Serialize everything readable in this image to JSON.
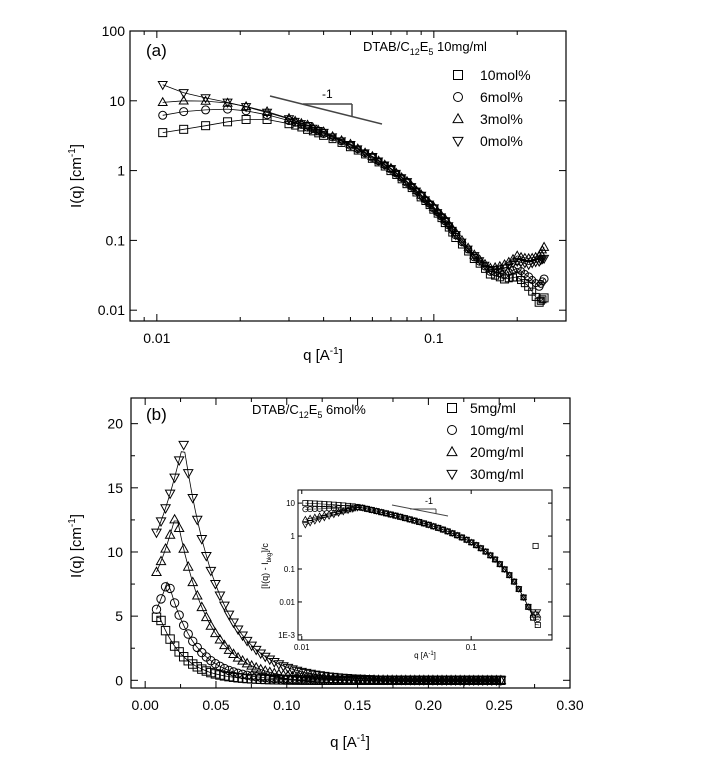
{
  "chart_data": [
    {
      "type": "scatter",
      "panel_label": "(a)",
      "xscale": "log",
      "yscale": "log",
      "xlim": [
        0.008,
        0.3
      ],
      "ylim": [
        0.007,
        100
      ],
      "xlabel": "q [Å-1]",
      "ylabel": "I(q) [cm-1]",
      "xticks": [
        0.01,
        0.1
      ],
      "xtick_labels": [
        "0.01",
        "0.1"
      ],
      "yticks": [
        0.01,
        0.1,
        1,
        10,
        100
      ],
      "ytick_labels": [
        "0.01",
        "0.1",
        "1",
        "10",
        "100"
      ],
      "legend_title": "DTAB/C12E5 10mg/ml",
      "legend_position": "top-right",
      "slope_annotation": "-1",
      "series": [
        {
          "name": "10mol%",
          "marker": "square",
          "x": [
            0.0105,
            0.0125,
            0.015,
            0.018,
            0.021,
            0.025,
            0.03,
            0.035,
            0.04,
            0.05,
            0.06,
            0.07,
            0.08,
            0.09,
            0.1,
            0.11,
            0.12,
            0.14,
            0.16,
            0.18,
            0.2,
            0.22,
            0.24,
            0.25
          ],
          "y": [
            3.5,
            3.9,
            4.4,
            5.0,
            5.4,
            5.4,
            4.7,
            3.9,
            3.2,
            2.2,
            1.5,
            1.0,
            0.65,
            0.42,
            0.28,
            0.18,
            0.11,
            0.055,
            0.033,
            0.028,
            0.03,
            0.022,
            0.013,
            0.015
          ]
        },
        {
          "name": "6mol%",
          "marker": "circle",
          "x": [
            0.0105,
            0.0125,
            0.015,
            0.018,
            0.021,
            0.025,
            0.03,
            0.035,
            0.04,
            0.05,
            0.06,
            0.07,
            0.08,
            0.09,
            0.1,
            0.11,
            0.12,
            0.14,
            0.16,
            0.18,
            0.2,
            0.22,
            0.24,
            0.25
          ],
          "y": [
            6.2,
            7.0,
            7.4,
            7.6,
            7.2,
            6.3,
            5.2,
            4.2,
            3.4,
            2.3,
            1.55,
            1.05,
            0.68,
            0.44,
            0.29,
            0.19,
            0.12,
            0.058,
            0.036,
            0.033,
            0.04,
            0.03,
            0.022,
            0.028
          ]
        },
        {
          "name": "3mol%",
          "marker": "triangle-up",
          "x": [
            0.0105,
            0.0125,
            0.015,
            0.018,
            0.021,
            0.025,
            0.03,
            0.035,
            0.04,
            0.05,
            0.06,
            0.07,
            0.08,
            0.09,
            0.1,
            0.11,
            0.12,
            0.14,
            0.16,
            0.18,
            0.2,
            0.22,
            0.24,
            0.25
          ],
          "y": [
            9.5,
            10.0,
            9.9,
            9.3,
            8.3,
            7.0,
            5.6,
            4.5,
            3.6,
            2.4,
            1.6,
            1.08,
            0.7,
            0.45,
            0.3,
            0.2,
            0.13,
            0.062,
            0.04,
            0.045,
            0.06,
            0.055,
            0.06,
            0.08
          ]
        },
        {
          "name": "0mol%",
          "marker": "triangle-down",
          "x": [
            0.0105,
            0.0125,
            0.015,
            0.018,
            0.021,
            0.025,
            0.03,
            0.035,
            0.04,
            0.05,
            0.06,
            0.07,
            0.08,
            0.09,
            0.1,
            0.11,
            0.12,
            0.14,
            0.16,
            0.18,
            0.2,
            0.22,
            0.24,
            0.25
          ],
          "y": [
            17.0,
            13.0,
            11.0,
            9.5,
            8.2,
            6.8,
            5.5,
            4.4,
            3.5,
            2.35,
            1.58,
            1.06,
            0.69,
            0.44,
            0.29,
            0.19,
            0.12,
            0.06,
            0.038,
            0.04,
            0.05,
            0.045,
            0.05,
            0.055
          ]
        }
      ]
    },
    {
      "type": "scatter",
      "panel_label": "(b)",
      "xlim": [
        -0.01,
        0.3
      ],
      "ylim": [
        -0.6,
        22
      ],
      "xlabel": "q [Å-1]",
      "ylabel": "I(q) [cm-1]",
      "xticks": [
        0.0,
        0.05,
        0.1,
        0.15,
        0.2,
        0.25,
        0.3
      ],
      "xtick_labels": [
        "0.00",
        "0.05",
        "0.10",
        "0.15",
        "0.20",
        "0.25",
        "0.30"
      ],
      "yticks": [
        0,
        5,
        10,
        15,
        20
      ],
      "ytick_labels": [
        "0",
        "5",
        "10",
        "15",
        "20"
      ],
      "legend_title": "DTAB/C12E5 6mol%",
      "legend_position": "top-right",
      "series": [
        {
          "name": "5mg/ml",
          "marker": "square",
          "peak_q": 0.009,
          "peak_I": 5.3
        },
        {
          "name": "10mg/ml",
          "marker": "circle",
          "peak_q": 0.016,
          "peak_I": 7.8
        },
        {
          "name": "20mg/ml",
          "marker": "triangle-up",
          "peak_q": 0.022,
          "peak_I": 13.0
        },
        {
          "name": "30mg/ml",
          "marker": "triangle-down",
          "peak_q": 0.027,
          "peak_I": 18.5
        }
      ],
      "inset": {
        "xscale": "log",
        "yscale": "log",
        "xlim": [
          0.0095,
          0.3
        ],
        "ylim": [
          0.0007,
          25
        ],
        "xlabel": "q [Å-1]",
        "ylabel": "[I(q) - Ibkg]/c",
        "xticks": [
          0.01,
          0.1
        ],
        "xtick_labels": [
          "0.01",
          "0.1"
        ],
        "yticks": [
          0.001,
          0.01,
          0.1,
          1,
          10
        ],
        "ytick_labels": [
          "1E-3",
          "0.01",
          "0.1",
          "1",
          "10"
        ],
        "slope_annotation": "-1"
      }
    }
  ]
}
